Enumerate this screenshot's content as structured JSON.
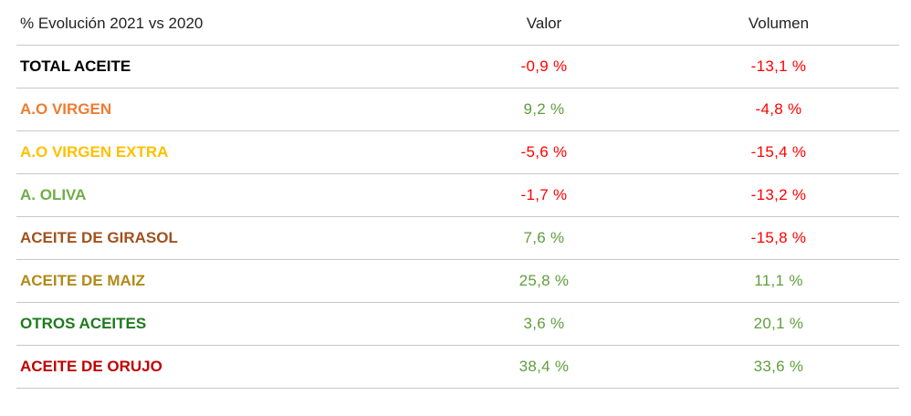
{
  "header": {
    "label": "% Evolución 2021 vs 2020",
    "valor": "Valor",
    "volumen": "Volumen"
  },
  "colors": {
    "negative": "#ff0000",
    "positive": "#5f9e3c"
  },
  "rows": [
    {
      "label": "TOTAL ACEITE",
      "label_color": "#000000",
      "valor": "-0,9 %",
      "valor_sign": "negative",
      "volumen": "-13,1 %",
      "volumen_sign": "negative"
    },
    {
      "label": "A.O VIRGEN",
      "label_color": "#ed7d31",
      "valor": "9,2 %",
      "valor_sign": "positive",
      "volumen": "-4,8 %",
      "volumen_sign": "negative"
    },
    {
      "label": "A.O VIRGEN EXTRA",
      "label_color": "#ffc000",
      "valor": "-5,6 %",
      "valor_sign": "negative",
      "volumen": "-15,4 %",
      "volumen_sign": "negative"
    },
    {
      "label": "A. OLIVA",
      "label_color": "#70ad47",
      "valor": "-1,7 %",
      "valor_sign": "negative",
      "volumen": "-13,2 %",
      "volumen_sign": "negative"
    },
    {
      "label": "ACEITE DE GIRASOL",
      "label_color": "#a0521e",
      "valor": "7,6 %",
      "valor_sign": "positive",
      "volumen": "-15,8 %",
      "volumen_sign": "negative"
    },
    {
      "label": "ACEITE DE MAIZ",
      "label_color": "#b08a1a",
      "valor": "25,8 %",
      "valor_sign": "positive",
      "volumen": "11,1 %",
      "volumen_sign": "positive"
    },
    {
      "label": "OTROS ACEITES",
      "label_color": "#1e7a1e",
      "valor": "3,6 %",
      "valor_sign": "positive",
      "volumen": "20,1 %",
      "volumen_sign": "positive"
    },
    {
      "label": "ACEITE DE ORUJO",
      "label_color": "#c00000",
      "valor": "38,4 %",
      "valor_sign": "positive",
      "volumen": "33,6 %",
      "volumen_sign": "positive"
    }
  ]
}
